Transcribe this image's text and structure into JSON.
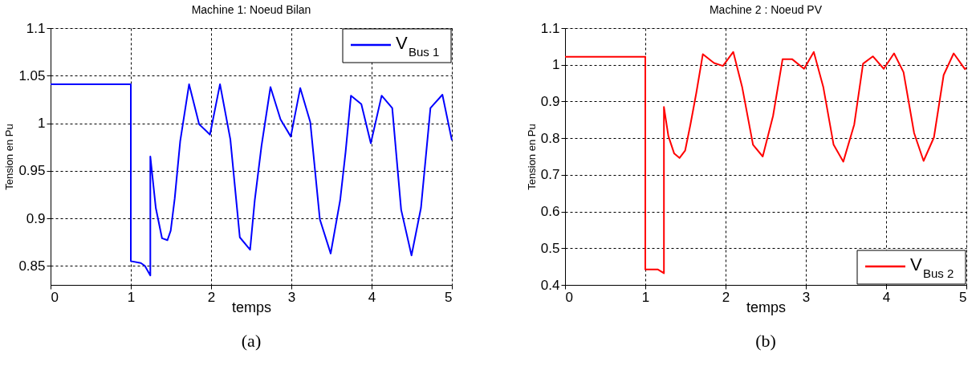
{
  "chart_data": [
    {
      "type": "line",
      "title": "Machine 1: Noeud Bilan",
      "xlabel": "temps",
      "ylabel": "Tension en Pu",
      "annotations": [
        "(a)"
      ],
      "legend": "top right",
      "grid": true,
      "line_style": "solid",
      "marker": "none",
      "xlim": [
        0,
        5
      ],
      "xticks": [
        0,
        1,
        2,
        3,
        4,
        5
      ],
      "ylim": [
        0.83,
        1.1
      ],
      "yticks": [
        0.85,
        0.9,
        0.95,
        1,
        1.05,
        1.1
      ],
      "series": [
        {
          "name": "V$_{Bus 1}$",
          "color": "#0000ff",
          "x": [
            0,
            1,
            1,
            1.125,
            1.175,
            1.243,
            1.243,
            1.311,
            1.389,
            1.456,
            1.497,
            1.547,
            1.615,
            1.726,
            1.851,
            1.986,
            2.111,
            2.24,
            2.358,
            2.486,
            2.544,
            2.628,
            2.74,
            2.865,
            2.993,
            3.111,
            3.236,
            3.355,
            3.49,
            3.608,
            3.676,
            3.743,
            3.872,
            3.99,
            4.125,
            4.257,
            4.368,
            4.497,
            4.615,
            4.733,
            4.882,
            5
          ],
          "values": [
            1.041,
            1.041,
            0.855,
            0.853,
            0.85,
            0.84,
            0.965,
            0.911,
            0.879,
            0.877,
            0.887,
            0.921,
            0.981,
            1.041,
            0.999,
            0.988,
            1.041,
            0.983,
            0.88,
            0.867,
            0.919,
            0.976,
            1.038,
            1.004,
            0.986,
            1.037,
            1.001,
            0.899,
            0.863,
            0.919,
            0.97,
            1.029,
            1.02,
            0.979,
            1.029,
            1.016,
            0.909,
            0.861,
            0.911,
            1.016,
            1.03,
            0.982
          ]
        }
      ]
    },
    {
      "type": "line",
      "title": "Machine 2 : Noeud PV",
      "xlabel": "temps",
      "ylabel": "Tension en Pu",
      "annotations": [
        "(b)"
      ],
      "legend": "bottom right",
      "grid": true,
      "line_style": "solid",
      "marker": "none",
      "xlim": [
        0,
        5
      ],
      "xticks": [
        0,
        1,
        2,
        3,
        4,
        5
      ],
      "ylim": [
        0.4,
        1.1
      ],
      "yticks": [
        0.4,
        0.5,
        0.6,
        0.7,
        0.8,
        0.9,
        1,
        1.1
      ],
      "series": [
        {
          "name": "V$_{Bus 2}$",
          "color": "#ff0000",
          "x": [
            0,
            1,
            1,
            1.158,
            1.232,
            1.232,
            1.287,
            1.36,
            1.426,
            1.496,
            1.562,
            1.636,
            1.717,
            1.856,
            1.967,
            2.096,
            2.206,
            2.342,
            2.463,
            2.592,
            2.71,
            2.831,
            2.978,
            3.099,
            3.217,
            3.346,
            3.467,
            3.603,
            3.713,
            3.835,
            3.971,
            4.099,
            4.217,
            4.349,
            4.467,
            4.596,
            4.717,
            4.842,
            4.982,
            5
          ],
          "values": [
            1.022,
            1.022,
            0.442,
            0.442,
            0.432,
            0.885,
            0.806,
            0.758,
            0.746,
            0.766,
            0.837,
            0.924,
            1.029,
            1.005,
            0.997,
            1.035,
            0.94,
            0.782,
            0.75,
            0.861,
            1.015,
            1.015,
            0.989,
            1.035,
            0.94,
            0.782,
            0.736,
            0.837,
            1.003,
            1.023,
            0.989,
            1.031,
            0.98,
            0.814,
            0.738,
            0.802,
            0.972,
            1.031,
            0.988,
            0.992
          ]
        }
      ]
    }
  ]
}
